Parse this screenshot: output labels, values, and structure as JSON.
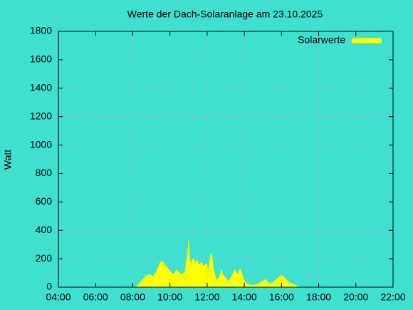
{
  "chart_data": {
    "type": "area",
    "title": "Werte der Dach-Solaranlage am 23.10.2025",
    "ylabel": "Watt",
    "legend": "top-right",
    "grid": true,
    "series": [
      {
        "name": "Solarwerte",
        "color": "#ffff00",
        "x": [
          8.14,
          8.33,
          8.52,
          8.71,
          8.9,
          9.09,
          9.29,
          9.48,
          9.59,
          9.74,
          9.94,
          10.17,
          10.36,
          10.51,
          10.66,
          10.82,
          10.89,
          10.97,
          11.01,
          11.05,
          11.12,
          11.24,
          11.35,
          11.47,
          11.58,
          11.7,
          11.81,
          11.97,
          12.08,
          12.2,
          12.27,
          12.35,
          12.5,
          12.66,
          12.77,
          12.85,
          13.0,
          13.15,
          13.31,
          13.5,
          13.61,
          13.77,
          13.88,
          14.0,
          14.15,
          14.34,
          14.57,
          14.76,
          14.95,
          15.14,
          15.3,
          15.49,
          15.64,
          15.8,
          15.95,
          16.06,
          16.22,
          16.37,
          16.56,
          16.75,
          16.94
        ],
        "values": [
          0,
          25,
          50,
          80,
          90,
          75,
          115,
          175,
          185,
          155,
          125,
          90,
          125,
          100,
          90,
          115,
          190,
          275,
          340,
          240,
          155,
          205,
          175,
          190,
          155,
          175,
          150,
          165,
          125,
          240,
          215,
          125,
          50,
          75,
          125,
          90,
          65,
          40,
          75,
          125,
          90,
          130,
          90,
          50,
          25,
          15,
          15,
          25,
          40,
          55,
          30,
          30,
          45,
          65,
          85,
          80,
          60,
          40,
          25,
          15,
          0
        ]
      }
    ],
    "xlim": [
      4,
      22
    ],
    "xticks": [
      {
        "value": 4,
        "label": "04:00"
      },
      {
        "value": 6,
        "label": "06:00"
      },
      {
        "value": 8,
        "label": "08:00"
      },
      {
        "value": 10,
        "label": "10:00"
      },
      {
        "value": 12,
        "label": "12:00"
      },
      {
        "value": 14,
        "label": "14:00"
      },
      {
        "value": 16,
        "label": "16:00"
      },
      {
        "value": 18,
        "label": "18:00"
      },
      {
        "value": 20,
        "label": "20:00"
      },
      {
        "value": 22,
        "label": "22:00"
      }
    ],
    "ylim": [
      0,
      1800
    ],
    "yticks": [
      0,
      200,
      400,
      600,
      800,
      1000,
      1200,
      1400,
      1600,
      1800
    ]
  }
}
